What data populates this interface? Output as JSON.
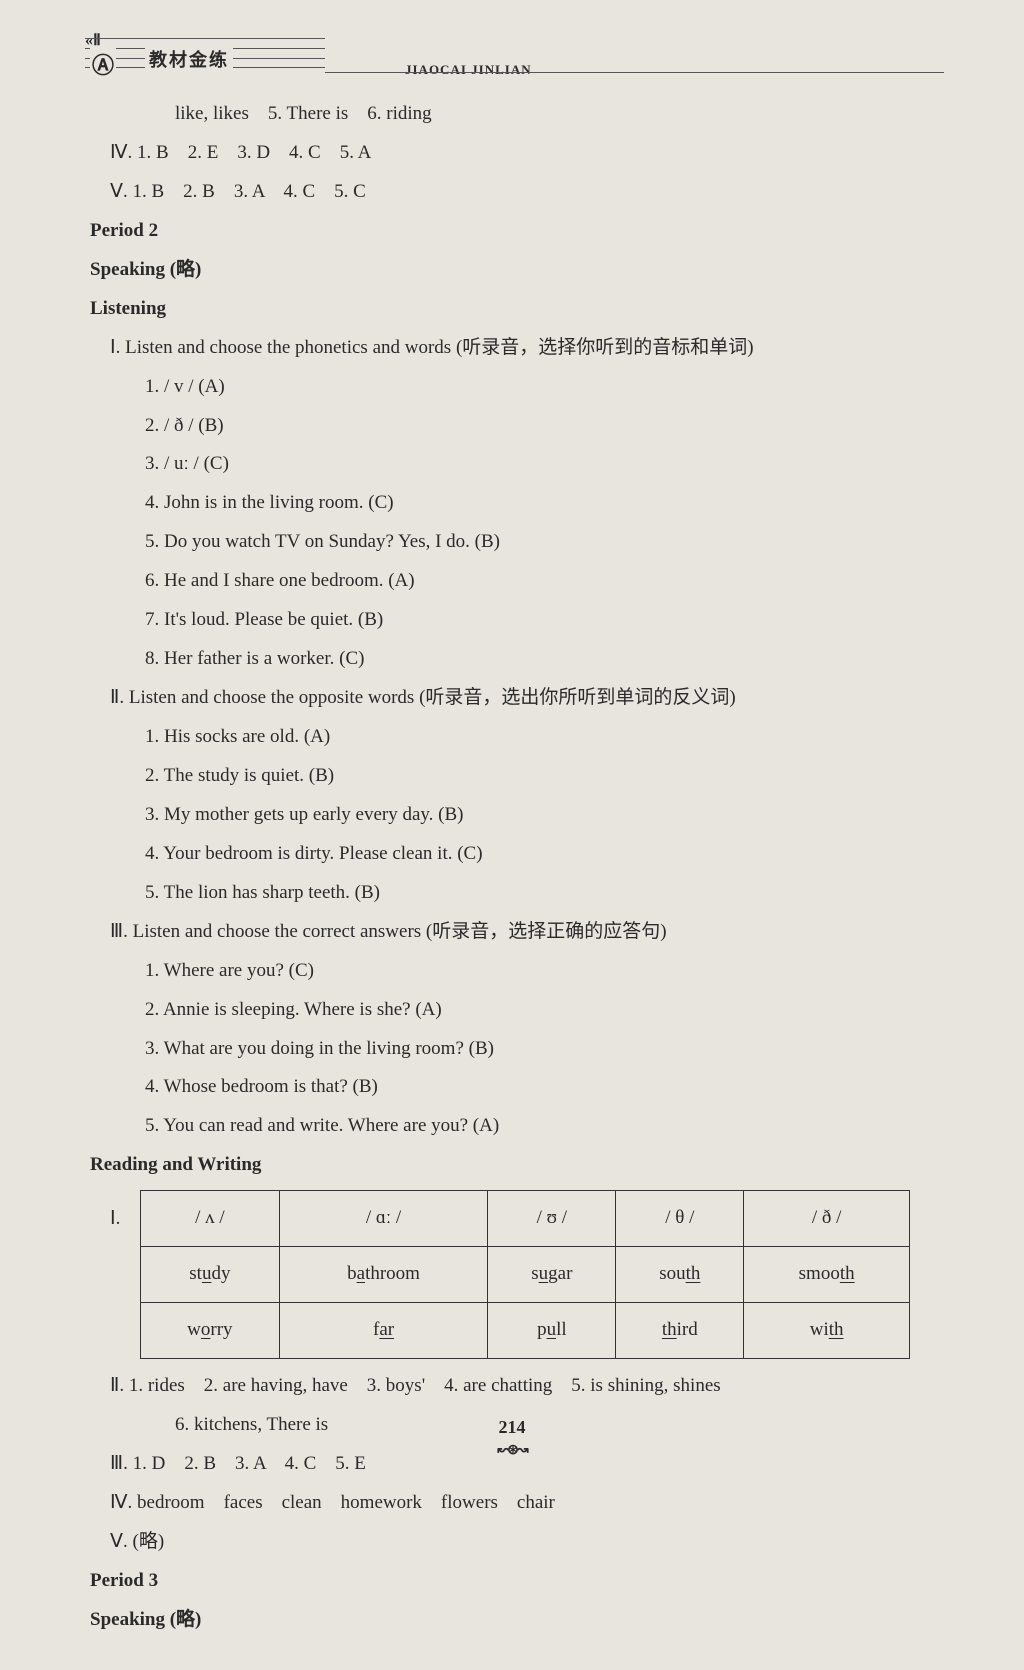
{
  "header": {
    "bracket": "«Ⅱ",
    "badge": "Ⓐ",
    "title_cn": "教材金练",
    "title_en": "JIAOCAI JINLIAN"
  },
  "topLines": {
    "l1": "like, likes　5. There is　6. riding",
    "l2": "Ⅳ. 1. B　2. E　3. D　4. C　5. A",
    "l3": "Ⅴ. 1. B　2. B　3. A　4. C　5. C"
  },
  "period2": {
    "title": "Period 2",
    "speaking": "Speaking (略)",
    "listening": "Listening",
    "sec1": {
      "head": "Ⅰ. Listen and choose the phonetics and words (听录音，选择你听到的音标和单词)",
      "i1": "1. / v / (A)",
      "i2": "2. / ð / (B)",
      "i3": "3. / uː / (C)",
      "i4": "4. John is in the living room. (C)",
      "i5": "5. Do you watch TV on Sunday? Yes, I do. (B)",
      "i6": "6. He and I share one bedroom. (A)",
      "i7": "7. It's loud. Please be quiet. (B)",
      "i8": "8. Her father is a worker. (C)"
    },
    "sec2": {
      "head": "Ⅱ. Listen and choose the opposite words (听录音，选出你所听到单词的反义词)",
      "i1": "1. His socks are old. (A)",
      "i2": "2. The study is quiet. (B)",
      "i3": "3. My mother gets up early every day. (B)",
      "i4": "4. Your bedroom is dirty. Please clean it. (C)",
      "i5": "5. The lion has sharp teeth. (B)"
    },
    "sec3": {
      "head": "Ⅲ. Listen and choose the correct answers (听录音，选择正确的应答句)",
      "i1": "1. Where are you? (C)",
      "i2": "2. Annie is sleeping. Where is she? (A)",
      "i3": "3. What are you doing in the living room? (B)",
      "i4": "4. Whose bedroom is that? (B)",
      "i5": "5. You can read and write. Where are you? (A)"
    },
    "rw": "Reading and Writing",
    "table": {
      "label": "Ⅰ.",
      "headers": [
        "/ ʌ /",
        "/ ɑː /",
        "/ ʊ /",
        "/ θ /",
        "/ ð /"
      ],
      "rows": [
        [
          "study",
          "bathroom",
          "sugar",
          "south",
          "smooth"
        ],
        [
          "worry",
          "far",
          "pull",
          "third",
          "with"
        ]
      ],
      "underlines": [
        [
          "u",
          "a",
          "u",
          "th",
          "th"
        ],
        [
          "o",
          "ar",
          "u",
          "th",
          "th"
        ]
      ]
    },
    "after": {
      "l1": "Ⅱ. 1. rides　2. are having, have　3. boys'　4. are chatting　5. is shining, shines",
      "l1b": "6. kitchens, There is",
      "l2": "Ⅲ. 1. D　2. B　3. A　4. C　5. E",
      "l3": "Ⅳ. bedroom　faces　clean　homework　flowers　chair",
      "l4": "Ⅴ. (略)"
    }
  },
  "period3": {
    "title": "Period 3",
    "speaking": "Speaking (略)"
  },
  "pageNum": "214"
}
